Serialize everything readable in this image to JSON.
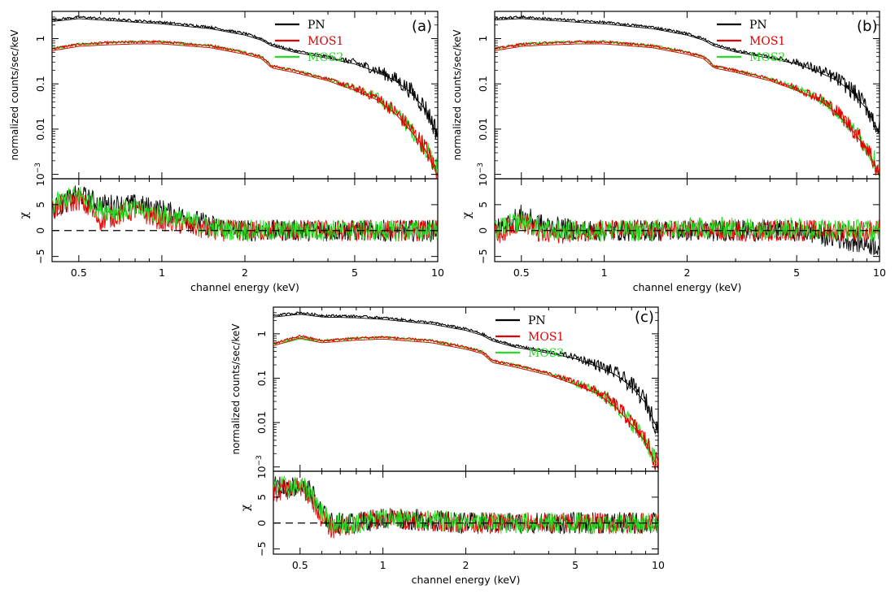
{
  "figure": {
    "panels_label": [
      "(a)",
      "(b)",
      "(c)"
    ]
  },
  "chart_data": [
    {
      "type": "line",
      "panel": "(a)",
      "xlabel": "channel energy (keV)",
      "ylabel_top": "normalized counts/sec/keV",
      "ylabel_bottom": "χ",
      "xscale": "log",
      "yscale_top": "log",
      "xlim": [
        0.4,
        10
      ],
      "ylim_top": [
        0.0008,
        4
      ],
      "ylim_bottom": [
        -6,
        10
      ],
      "xticks": [
        {
          "v": 0.5,
          "label": "0.5"
        },
        {
          "v": 1,
          "label": "1"
        },
        {
          "v": 2,
          "label": "2"
        },
        {
          "v": 5,
          "label": "5"
        },
        {
          "v": 10,
          "label": "10"
        }
      ],
      "yticks_top": [
        {
          "v": 1,
          "label": "1"
        },
        {
          "v": 0.1,
          "label": "0.1"
        },
        {
          "v": 0.01,
          "label": "0.01"
        },
        {
          "v": 0.001,
          "label": "10",
          "sup": "−3"
        }
      ],
      "yticks_bottom": [
        {
          "v": 5,
          "label": "5"
        },
        {
          "v": 0,
          "label": "0"
        },
        {
          "v": -5,
          "label": "−5"
        }
      ],
      "legend": [
        "PN",
        "MOS1",
        "MOS2"
      ],
      "legend_position": "top-right",
      "colors": {
        "PN": "#000000",
        "MOS1": "#e00000",
        "MOS2": "#22dd22"
      },
      "series_top": [
        {
          "name": "PN",
          "x": [
            0.4,
            0.5,
            0.6,
            0.8,
            1,
            1.5,
            2,
            2.3,
            2.5,
            3,
            4,
            5,
            6,
            7,
            8,
            9,
            10
          ],
          "y": [
            2.6,
            3.0,
            2.8,
            2.5,
            2.3,
            1.8,
            1.3,
            1.0,
            0.75,
            0.55,
            0.4,
            0.3,
            0.2,
            0.13,
            0.07,
            0.03,
            0.008
          ]
        },
        {
          "name": "MOS1",
          "x": [
            0.4,
            0.5,
            0.6,
            0.8,
            1,
            1.5,
            2,
            2.3,
            2.5,
            3,
            4,
            5,
            6,
            7,
            8,
            9,
            10
          ],
          "y": [
            0.6,
            0.75,
            0.8,
            0.85,
            0.85,
            0.7,
            0.5,
            0.4,
            0.25,
            0.2,
            0.13,
            0.08,
            0.05,
            0.025,
            0.01,
            0.004,
            0.001
          ]
        },
        {
          "name": "MOS2",
          "x": [
            0.4,
            0.5,
            0.6,
            0.8,
            1,
            1.5,
            2,
            2.3,
            2.5,
            3,
            4,
            5,
            6,
            7,
            8,
            9,
            10
          ],
          "y": [
            0.6,
            0.75,
            0.8,
            0.85,
            0.85,
            0.7,
            0.5,
            0.4,
            0.25,
            0.2,
            0.13,
            0.08,
            0.05,
            0.025,
            0.01,
            0.004,
            0.0012
          ]
        }
      ],
      "series_bottom": [
        {
          "name": "PN",
          "x": [
            0.4,
            0.5,
            0.6,
            0.8,
            1,
            1.5,
            2,
            3,
            5,
            10
          ],
          "y": [
            4,
            7,
            5,
            5,
            4,
            1,
            0,
            0,
            0,
            0
          ]
        },
        {
          "name": "MOS1",
          "x": [
            0.4,
            0.5,
            0.6,
            0.8,
            1,
            1.5,
            2,
            3,
            5,
            10
          ],
          "y": [
            4,
            6,
            2,
            4,
            2,
            0,
            0,
            0,
            0,
            0
          ]
        },
        {
          "name": "MOS2",
          "x": [
            0.4,
            0.5,
            0.6,
            0.8,
            1,
            1.5,
            2,
            3,
            5,
            10
          ],
          "y": [
            5,
            7,
            4,
            4,
            3,
            0.5,
            0,
            0,
            0,
            0
          ]
        }
      ]
    },
    {
      "type": "line",
      "panel": "(b)",
      "xlabel": "channel energy (keV)",
      "ylabel_top": "normalized counts/sec/keV",
      "ylabel_bottom": "χ",
      "xscale": "log",
      "yscale_top": "log",
      "xlim": [
        0.4,
        10
      ],
      "ylim_top": [
        0.0008,
        4
      ],
      "ylim_bottom": [
        -6,
        10
      ],
      "xticks": [
        {
          "v": 0.5,
          "label": "0.5"
        },
        {
          "v": 1,
          "label": "1"
        },
        {
          "v": 2,
          "label": "2"
        },
        {
          "v": 5,
          "label": "5"
        },
        {
          "v": 10,
          "label": "10"
        }
      ],
      "yticks_top": [
        {
          "v": 1,
          "label": "1"
        },
        {
          "v": 0.1,
          "label": "0.1"
        },
        {
          "v": 0.01,
          "label": "0.01"
        },
        {
          "v": 0.001,
          "label": "10",
          "sup": "−3"
        }
      ],
      "yticks_bottom": [
        {
          "v": 5,
          "label": "5"
        },
        {
          "v": 0,
          "label": "0"
        },
        {
          "v": -5,
          "label": "−5"
        }
      ],
      "legend": [
        "PN",
        "MOS1",
        "MOS2"
      ],
      "legend_position": "top-right",
      "colors": {
        "PN": "#000000",
        "MOS1": "#e00000",
        "MOS2": "#22dd22"
      },
      "series_top": [
        {
          "name": "PN",
          "x": [
            0.4,
            0.5,
            0.6,
            0.8,
            1,
            1.5,
            2,
            2.3,
            2.5,
            3,
            4,
            5,
            6,
            7,
            8,
            9,
            10
          ],
          "y": [
            2.8,
            3.0,
            2.8,
            2.5,
            2.3,
            1.8,
            1.3,
            1.0,
            0.75,
            0.55,
            0.4,
            0.3,
            0.2,
            0.13,
            0.07,
            0.03,
            0.009
          ]
        },
        {
          "name": "MOS1",
          "x": [
            0.4,
            0.5,
            0.6,
            0.8,
            1,
            1.5,
            2,
            2.3,
            2.5,
            3,
            4,
            5,
            6,
            7,
            8,
            9,
            10
          ],
          "y": [
            0.6,
            0.75,
            0.8,
            0.85,
            0.85,
            0.7,
            0.5,
            0.4,
            0.25,
            0.2,
            0.13,
            0.08,
            0.05,
            0.025,
            0.01,
            0.004,
            0.001
          ]
        },
        {
          "name": "MOS2",
          "x": [
            0.4,
            0.5,
            0.6,
            0.8,
            1,
            1.5,
            2,
            2.3,
            2.5,
            3,
            4,
            5,
            6,
            7,
            8,
            9,
            10
          ],
          "y": [
            0.6,
            0.75,
            0.8,
            0.85,
            0.85,
            0.7,
            0.5,
            0.4,
            0.25,
            0.2,
            0.13,
            0.08,
            0.05,
            0.025,
            0.01,
            0.004,
            0.0012
          ]
        }
      ],
      "series_bottom": [
        {
          "name": "PN",
          "x": [
            0.4,
            0.5,
            0.6,
            0.8,
            1,
            1.5,
            2,
            3,
            5,
            10
          ],
          "y": [
            0,
            3,
            1,
            0,
            0,
            0,
            0,
            0,
            0,
            -3
          ]
        },
        {
          "name": "MOS1",
          "x": [
            0.4,
            0.5,
            0.6,
            0.8,
            1,
            1.5,
            2,
            3,
            5,
            10
          ],
          "y": [
            -1,
            2,
            -1,
            0,
            0,
            0,
            0,
            0,
            0,
            0
          ]
        },
        {
          "name": "MOS2",
          "x": [
            0.4,
            0.5,
            0.6,
            0.8,
            1,
            1.5,
            2,
            3,
            5,
            10
          ],
          "y": [
            0,
            2,
            0,
            0,
            0,
            0,
            0.5,
            0.5,
            0.5,
            0
          ]
        }
      ]
    },
    {
      "type": "line",
      "panel": "(c)",
      "xlabel": "channel energy (keV)",
      "ylabel_top": "normalized counts/sec/keV",
      "ylabel_bottom": "χ",
      "xscale": "log",
      "yscale_top": "log",
      "xlim": [
        0.4,
        10
      ],
      "ylim_top": [
        0.0008,
        4
      ],
      "ylim_bottom": [
        -6,
        10
      ],
      "xticks": [
        {
          "v": 0.5,
          "label": "0.5"
        },
        {
          "v": 1,
          "label": "1"
        },
        {
          "v": 2,
          "label": "2"
        },
        {
          "v": 5,
          "label": "5"
        },
        {
          "v": 10,
          "label": "10"
        }
      ],
      "yticks_top": [
        {
          "v": 1,
          "label": "1"
        },
        {
          "v": 0.1,
          "label": "0.1"
        },
        {
          "v": 0.01,
          "label": "0.01"
        },
        {
          "v": 0.001,
          "label": "10",
          "sup": "−3"
        }
      ],
      "yticks_bottom": [
        {
          "v": 5,
          "label": "5"
        },
        {
          "v": 0,
          "label": "0"
        },
        {
          "v": -5,
          "label": "−5"
        }
      ],
      "legend": [
        "PN",
        "MOS1",
        "MOS2"
      ],
      "legend_position": "top-right",
      "colors": {
        "PN": "#000000",
        "MOS1": "#e00000",
        "MOS2": "#22dd22"
      },
      "series_top": [
        {
          "name": "PN",
          "x": [
            0.4,
            0.5,
            0.6,
            0.8,
            1,
            1.5,
            2,
            2.3,
            2.5,
            3,
            4,
            5,
            6,
            7,
            8,
            9,
            10
          ],
          "y": [
            2.6,
            3.0,
            2.6,
            2.5,
            2.3,
            1.8,
            1.3,
            1.0,
            0.75,
            0.55,
            0.4,
            0.3,
            0.2,
            0.13,
            0.07,
            0.03,
            0.007
          ]
        },
        {
          "name": "MOS1",
          "x": [
            0.4,
            0.5,
            0.6,
            0.8,
            1,
            1.5,
            2,
            2.3,
            2.5,
            3,
            4,
            5,
            6,
            7,
            8,
            9,
            10
          ],
          "y": [
            0.6,
            0.9,
            0.7,
            0.8,
            0.85,
            0.7,
            0.5,
            0.4,
            0.25,
            0.2,
            0.13,
            0.08,
            0.05,
            0.025,
            0.01,
            0.004,
            0.001
          ]
        },
        {
          "name": "MOS2",
          "x": [
            0.4,
            0.5,
            0.6,
            0.8,
            1,
            1.5,
            2,
            2.3,
            2.5,
            3,
            4,
            5,
            6,
            7,
            8,
            9,
            10
          ],
          "y": [
            0.6,
            0.85,
            0.7,
            0.8,
            0.85,
            0.7,
            0.5,
            0.4,
            0.25,
            0.2,
            0.13,
            0.08,
            0.05,
            0.025,
            0.01,
            0.004,
            0.0012
          ]
        }
      ],
      "series_bottom": [
        {
          "name": "PN",
          "x": [
            0.4,
            0.5,
            0.55,
            0.6,
            0.65,
            0.8,
            1,
            1.5,
            2,
            3,
            5,
            10
          ],
          "y": [
            7,
            7,
            6,
            2,
            0,
            0,
            1,
            0.5,
            0,
            0,
            0,
            0
          ]
        },
        {
          "name": "MOS1",
          "x": [
            0.4,
            0.5,
            0.55,
            0.6,
            0.65,
            0.8,
            1,
            1.5,
            2,
            3,
            5,
            10
          ],
          "y": [
            6,
            7,
            5,
            1,
            -1,
            0,
            1,
            0.5,
            0,
            0,
            0,
            0
          ]
        },
        {
          "name": "MOS2",
          "x": [
            0.4,
            0.5,
            0.55,
            0.6,
            0.65,
            0.8,
            1,
            1.5,
            2,
            3,
            5,
            10
          ],
          "y": [
            7,
            7,
            6,
            2,
            0,
            0,
            1,
            0.5,
            0,
            0,
            0,
            0
          ]
        }
      ]
    }
  ]
}
